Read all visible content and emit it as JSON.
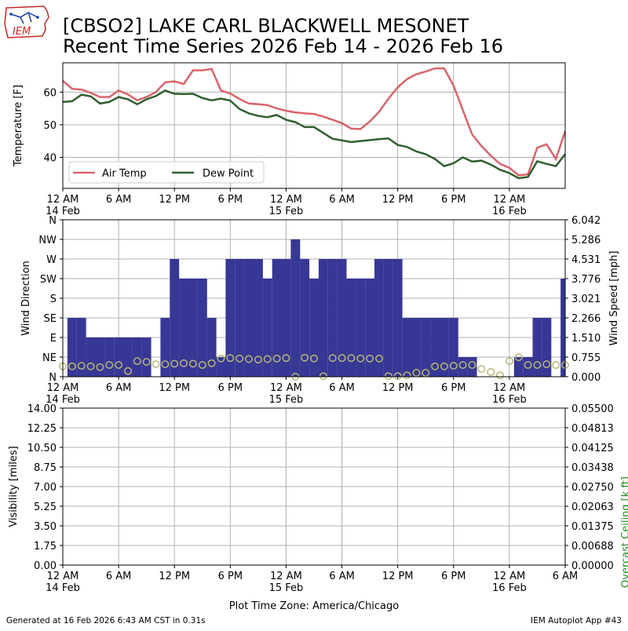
{
  "title_line1": "[CBSO2] LAKE CARL BLACKWELL MESONET",
  "title_line2": "Recent Time Series 2026 Feb 14 - 2026 Feb 16",
  "logo_text": "IEM",
  "footer_left": "Generated at 16 Feb 2026 6:43 AM CST in 0.31s",
  "footer_right": "IEM Autoplot App #43",
  "xlabel": "Plot Time Zone: America/Chicago",
  "x_ticks": [
    {
      "hour": 0,
      "label": "12 AM",
      "date": "14 Feb"
    },
    {
      "hour": 6,
      "label": "6 AM",
      "date": ""
    },
    {
      "hour": 12,
      "label": "12 PM",
      "date": ""
    },
    {
      "hour": 18,
      "label": "6 PM",
      "date": ""
    },
    {
      "hour": 24,
      "label": "12 AM",
      "date": "15 Feb"
    },
    {
      "hour": 30,
      "label": "6 AM",
      "date": ""
    },
    {
      "hour": 36,
      "label": "12 PM",
      "date": ""
    },
    {
      "hour": 42,
      "label": "6 PM",
      "date": ""
    },
    {
      "hour": 48,
      "label": "12 AM",
      "date": "16 Feb"
    }
  ],
  "x_ticks_bottom_extra": {
    "hour": 54,
    "label": "6 AM",
    "date": ""
  },
  "chart_data": [
    {
      "type": "line",
      "ylabel": "Temperature [F]",
      "xlim_hours": [
        0,
        54
      ],
      "ylim": [
        30.5,
        69
      ],
      "yticks": [
        40,
        50,
        60
      ],
      "grid": true,
      "legend_placement": "lower-left",
      "series": [
        {
          "name": "Air Temp",
          "color": "#d9636b",
          "x": [
            0,
            1,
            2,
            3,
            4,
            5,
            6,
            7,
            8,
            9,
            10,
            11,
            12,
            13,
            14,
            15,
            16,
            17,
            18,
            19,
            20,
            21,
            22,
            23,
            24,
            25,
            26,
            27,
            28,
            29,
            30,
            31,
            32,
            33,
            34,
            35,
            36,
            37,
            38,
            39,
            40,
            41,
            42,
            43,
            44,
            45,
            46,
            47,
            48,
            49,
            50,
            51,
            52,
            53,
            54
          ],
          "values": [
            63.5,
            61,
            60.8,
            59.8,
            58.5,
            58.5,
            60.5,
            59.3,
            57.5,
            58.5,
            60,
            63,
            63.3,
            62.5,
            66.7,
            66.7,
            67.1,
            60.5,
            59.6,
            57.9,
            56.5,
            56.3,
            56,
            55,
            54.3,
            53.8,
            53.5,
            53.3,
            52.5,
            51.5,
            50.5,
            48.8,
            48.7,
            51,
            54,
            58,
            61.5,
            64,
            65.5,
            66.3,
            67.3,
            67.3,
            62,
            54.5,
            47,
            43.5,
            40.5,
            38,
            36.8,
            34.5,
            34.8,
            43,
            44,
            39.5,
            48
          ]
        },
        {
          "name": "Dew Point",
          "color": "#2f5f2f",
          "x": [
            0,
            1,
            2,
            3,
            4,
            5,
            6,
            7,
            8,
            9,
            10,
            11,
            12,
            13,
            14,
            15,
            16,
            17,
            18,
            19,
            20,
            21,
            22,
            23,
            24,
            25,
            26,
            27,
            28,
            29,
            30,
            31,
            32,
            33,
            34,
            35,
            36,
            37,
            38,
            39,
            40,
            41,
            42,
            43,
            44,
            45,
            46,
            47,
            48,
            49,
            50,
            51,
            52,
            53,
            54
          ],
          "values": [
            57,
            57.2,
            59.2,
            58.7,
            56.5,
            57,
            58.5,
            57.8,
            56.3,
            57.8,
            58.8,
            60.5,
            59.5,
            59.4,
            59.5,
            58.2,
            57.5,
            58,
            57.4,
            54.8,
            53.5,
            52.7,
            52.3,
            53,
            51.5,
            50.8,
            49.3,
            49.3,
            47.5,
            45.7,
            45.2,
            44.7,
            45,
            45.3,
            45.6,
            45.8,
            43.8,
            43.2,
            41.8,
            41,
            39.5,
            37.3,
            38.2,
            40,
            38.7,
            39,
            37.8,
            36.2,
            35.2,
            33.6,
            34,
            38.8,
            38,
            37.3,
            41
          ]
        }
      ]
    },
    {
      "type": "bar",
      "ylabel_left": "Wind Direction",
      "ylabel_right": "Wind Speed [mph]",
      "xlim_hours": [
        0,
        54
      ],
      "direction_ticks": [
        "N",
        "NE",
        "E",
        "SE",
        "S",
        "SW",
        "W",
        "NW",
        "N"
      ],
      "direction_range_deg": [
        0,
        360
      ],
      "speed_ticks": [
        "0.000",
        "0.755",
        "1.510",
        "2.266",
        "3.021",
        "3.776",
        "4.531",
        "5.286",
        "6.042"
      ],
      "speed_range": [
        0,
        6.042
      ],
      "grid": true,
      "series": [
        {
          "name": "",
          "color": "#373795",
          "kind": "wind direction bars (degrees, 1-hour width)",
          "x": [
            0,
            1,
            2,
            3,
            4,
            5,
            6,
            7,
            8,
            9,
            10,
            11,
            12,
            13,
            14,
            15,
            16,
            17,
            18,
            19,
            20,
            21,
            22,
            23,
            24,
            25,
            26,
            27,
            28,
            29,
            30,
            31,
            32,
            33,
            34,
            35,
            36,
            37,
            38,
            39,
            40,
            41,
            42,
            43,
            44,
            45,
            46,
            47,
            48,
            49,
            50,
            51,
            52,
            53,
            54
          ],
          "values": [
            0,
            135,
            135,
            90,
            90,
            90,
            90,
            90,
            90,
            90,
            0,
            135,
            270,
            225,
            225,
            225,
            135,
            45,
            270,
            270,
            270,
            270,
            225,
            270,
            270,
            315,
            270,
            225,
            270,
            270,
            270,
            225,
            225,
            225,
            270,
            270,
            270,
            135,
            135,
            135,
            135,
            135,
            135,
            45,
            45,
            0,
            0,
            0,
            0,
            45,
            45,
            135,
            135,
            0,
            225
          ]
        },
        {
          "name": "",
          "color": "#b9b878",
          "kind": "wind speed markers (mph)",
          "x": [
            0,
            1,
            2,
            3,
            4,
            5,
            6,
            7,
            8,
            9,
            10,
            11,
            12,
            13,
            14,
            15,
            16,
            17,
            18,
            19,
            20,
            21,
            22,
            23,
            24,
            25,
            26,
            27,
            28,
            29,
            30,
            31,
            32,
            33,
            34,
            35,
            36,
            37,
            38,
            39,
            40,
            41,
            42,
            43,
            44,
            45,
            46,
            47,
            48,
            49,
            50,
            51,
            52,
            53,
            54
          ],
          "values": [
            0.4,
            0.4,
            0.42,
            0.4,
            0.37,
            0.45,
            0.45,
            0.22,
            0.6,
            0.57,
            0.48,
            0.48,
            0.5,
            0.52,
            0.5,
            0.45,
            0.52,
            0.7,
            0.72,
            0.7,
            0.68,
            0.66,
            0.68,
            0.7,
            0.72,
            0.0,
            0.73,
            0.7,
            0.02,
            0.72,
            0.72,
            0.72,
            0.7,
            0.7,
            0.7,
            0.02,
            0.02,
            0.05,
            0.15,
            0.15,
            0.4,
            0.4,
            0.42,
            0.45,
            0.45,
            0.3,
            0.18,
            0.05,
            0.6,
            0.75,
            0.45,
            0.45,
            0.48,
            0.45,
            0.45
          ]
        }
      ]
    },
    {
      "type": "line",
      "ylabel_left": "Visibility [miles]",
      "ylabel_right": "Overcast Ceiling [k ft]",
      "ylabel_right_color": "#228b22",
      "xlim_hours": [
        0,
        54
      ],
      "ylim_left": [
        0,
        14
      ],
      "ylim_right": [
        0,
        0.055
      ],
      "yticks_left": [
        "0.00",
        "1.75",
        "3.50",
        "5.25",
        "7.00",
        "8.75",
        "10.50",
        "12.25",
        "14.00"
      ],
      "yticks_right": [
        "0.00000",
        "0.00688",
        "0.01375",
        "0.02063",
        "0.02750",
        "0.03438",
        "0.04125",
        "0.04813",
        "0.05500"
      ],
      "grid": true,
      "series": []
    }
  ]
}
